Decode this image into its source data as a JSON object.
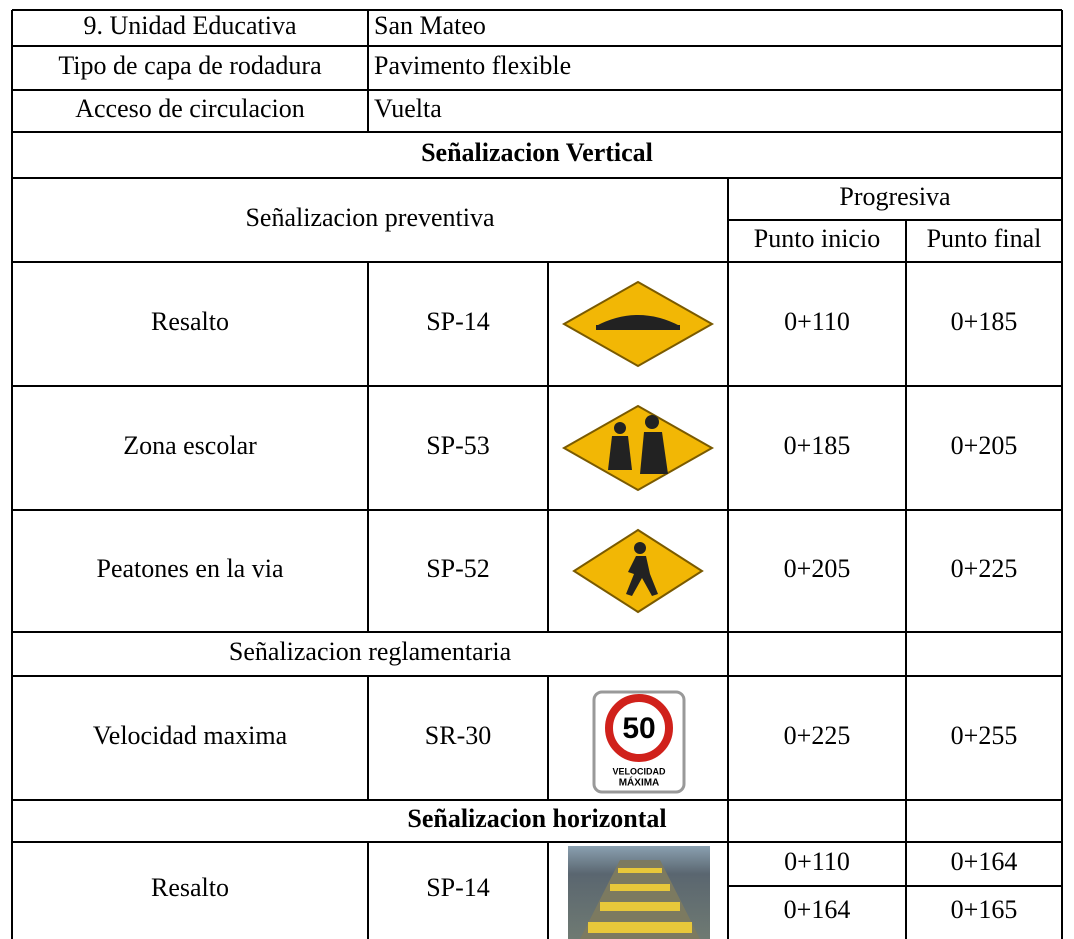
{
  "info": [
    {
      "label": "9. Unidad Educativa",
      "value": "San Mateo"
    },
    {
      "label": "Tipo de capa de rodadura",
      "value": "Pavimento flexible"
    },
    {
      "label": "Acceso de circulacion",
      "value": "Vuelta"
    }
  ],
  "vertical_title": "Señalizacion Vertical",
  "preventive_title": "Señalizacion preventiva",
  "progresiva": "Progresiva",
  "start_header": "Punto inicio",
  "end_header": "Punto final",
  "preventive_rows": [
    {
      "name": "Resalto",
      "code": "SP-14",
      "start": "0+110",
      "end": "0+185"
    },
    {
      "name": "Zona escolar",
      "code": "SP-53",
      "start": "0+185",
      "end": "0+205"
    },
    {
      "name": "Peatones en la via",
      "code": "SP-52",
      "start": "0+205",
      "end": "0+225"
    }
  ],
  "regulatory_title": "Señalizacion reglamentaria",
  "regulatory_rows": [
    {
      "name": "Velocidad maxima",
      "code": "SR-30",
      "start": "0+225",
      "end": "0+255",
      "sign_number": "50",
      "sign_text_1": "VELOCIDAD",
      "sign_text_2": "MÁXIMA"
    }
  ],
  "horizontal_title": "Señalizacion horizontal",
  "horizontal_rows": [
    {
      "name": "Resalto",
      "code": "SP-14",
      "ranges": [
        {
          "start": "0+110",
          "end": "0+164"
        },
        {
          "start": "0+164",
          "end": "0+165"
        }
      ]
    }
  ]
}
